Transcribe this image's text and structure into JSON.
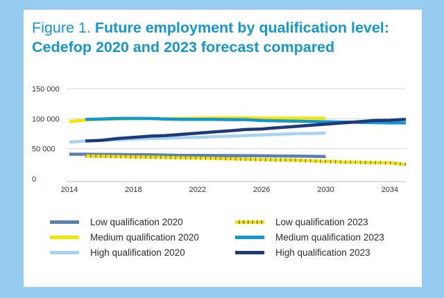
{
  "figure": {
    "number_label": "Figure 1.",
    "title_line1": "Future employment by qualification level:",
    "title_line2": "Cedefop 2020 and 2023 forecast compared"
  },
  "colors": {
    "background": "#97cbef",
    "title": "#1596d4",
    "low_2020": "#5b7fb3",
    "medium_2020": "#f5e400",
    "high_2020": "#a9d3f2",
    "low_2023": "#f5e400",
    "medium_2023": "#1596d4",
    "high_2023": "#1e3a7a"
  },
  "chart_data": {
    "type": "line",
    "title": "Future employment by qualification level: Cedefop 2020 and 2023 forecast compared",
    "xlabel": "",
    "ylabel": "",
    "xlim": [
      2014,
      2035
    ],
    "ylim": [
      0,
      150000
    ],
    "x_ticks": [
      "2014",
      "2018",
      "2022",
      "2026",
      "2030",
      "2034"
    ],
    "y_ticks": [
      "0",
      "50 000",
      "100 000",
      "150 000"
    ],
    "grid": true,
    "series": [
      {
        "name": "Low qualification 2020",
        "color": "#5b7fb3",
        "style": "solid",
        "x": [
          2014,
          2015,
          2016,
          2017,
          2018,
          2019,
          2020,
          2021,
          2022,
          2023,
          2024,
          2025,
          2026,
          2027,
          2028,
          2029,
          2030
        ],
        "y": [
          41000,
          41000,
          40500,
          40500,
          40000,
          40000,
          39500,
          39000,
          39000,
          38800,
          38600,
          38500,
          38300,
          38000,
          37800,
          37500,
          37000
        ]
      },
      {
        "name": "Medium qualification 2020",
        "color": "#f5e400",
        "style": "solid",
        "x": [
          2014,
          2015,
          2016,
          2017,
          2018,
          2019,
          2020,
          2021,
          2022,
          2023,
          2024,
          2025,
          2026,
          2027,
          2028,
          2029,
          2030
        ],
        "y": [
          95000,
          98000,
          99000,
          99500,
          100000,
          100000,
          100000,
          100500,
          101000,
          101500,
          101500,
          101500,
          101000,
          101000,
          101000,
          101000,
          100500
        ]
      },
      {
        "name": "High qualification 2020",
        "color": "#a9d3f2",
        "style": "solid",
        "x": [
          2014,
          2015,
          2016,
          2017,
          2018,
          2019,
          2020,
          2021,
          2022,
          2023,
          2024,
          2025,
          2026,
          2027,
          2028,
          2029,
          2030
        ],
        "y": [
          61000,
          63000,
          64000,
          65000,
          66000,
          67000,
          67500,
          68500,
          69000,
          70000,
          71000,
          72000,
          73000,
          74000,
          75000,
          75500,
          76000
        ]
      },
      {
        "name": "Low qualification 2023",
        "color": "#f5e400",
        "style": "hatched",
        "x": [
          2015,
          2016,
          2017,
          2018,
          2019,
          2020,
          2021,
          2022,
          2023,
          2024,
          2025,
          2026,
          2027,
          2028,
          2029,
          2030,
          2031,
          2032,
          2033,
          2034,
          2035
        ],
        "y": [
          38000,
          37500,
          37000,
          36500,
          36000,
          35500,
          35000,
          34500,
          34000,
          33500,
          32500,
          32000,
          31500,
          31000,
          30000,
          29000,
          28000,
          27500,
          27000,
          26500,
          24000
        ]
      },
      {
        "name": "Medium qualification 2023",
        "color": "#1596d4",
        "style": "solid",
        "x": [
          2015,
          2016,
          2017,
          2018,
          2019,
          2020,
          2021,
          2022,
          2023,
          2024,
          2025,
          2026,
          2027,
          2028,
          2029,
          2030,
          2031,
          2032,
          2033,
          2034,
          2035
        ],
        "y": [
          99000,
          99500,
          100500,
          100500,
          100500,
          99500,
          99000,
          99000,
          99000,
          98500,
          98500,
          97000,
          96500,
          96000,
          95500,
          95000,
          94500,
          94000,
          93500,
          93000,
          93000
        ]
      },
      {
        "name": "High qualification 2023",
        "color": "#1e3a7a",
        "style": "solid",
        "x": [
          2015,
          2016,
          2017,
          2018,
          2019,
          2020,
          2021,
          2022,
          2023,
          2024,
          2025,
          2026,
          2027,
          2028,
          2029,
          2030,
          2031,
          2032,
          2033,
          2034,
          2035
        ],
        "y": [
          63000,
          64000,
          67000,
          69000,
          71000,
          72000,
          74000,
          76000,
          78000,
          80000,
          82000,
          83000,
          85000,
          87000,
          89000,
          91000,
          93000,
          95000,
          97000,
          97500,
          99000
        ]
      }
    ],
    "legend": [
      {
        "label": "Low qualification 2020",
        "color": "#5b7fb3",
        "style": "solid"
      },
      {
        "label": "Low qualification 2023",
        "color": "#f5e400",
        "style": "hatched"
      },
      {
        "label": "Medium qualification 2020",
        "color": "#f5e400",
        "style": "solid"
      },
      {
        "label": "Medium qualification 2023",
        "color": "#1596d4",
        "style": "solid"
      },
      {
        "label": "High qualification 2020",
        "color": "#a9d3f2",
        "style": "solid"
      },
      {
        "label": "High qualification 2023",
        "color": "#1e3a7a",
        "style": "solid"
      }
    ]
  }
}
